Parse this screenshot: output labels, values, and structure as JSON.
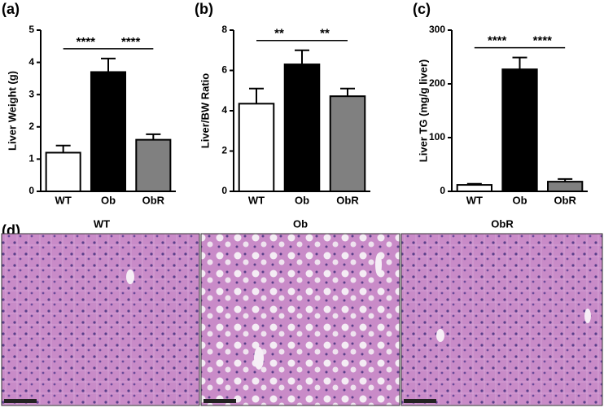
{
  "chart_data": [
    {
      "type": "bar",
      "panel_label": "(a)",
      "y_label": "Liver Weight (g)",
      "categories": [
        "WT",
        "Ob",
        "ObR"
      ],
      "values": [
        1.2,
        3.7,
        1.6
      ],
      "errors": [
        0.22,
        0.42,
        0.17
      ],
      "colors": [
        "#ffffff",
        "#000000",
        "#808080"
      ],
      "ylim": [
        0,
        5
      ],
      "yticks": [
        0,
        1,
        2,
        3,
        4,
        5
      ],
      "annotations": [
        "****",
        "****"
      ]
    },
    {
      "type": "bar",
      "panel_label": "(b)",
      "y_label": "Liver/BW Ratio",
      "categories": [
        "WT",
        "Ob",
        "ObR"
      ],
      "values": [
        4.35,
        6.3,
        4.72
      ],
      "errors": [
        0.75,
        0.7,
        0.38
      ],
      "colors": [
        "#ffffff",
        "#000000",
        "#808080"
      ],
      "ylim": [
        0,
        8
      ],
      "yticks": [
        0,
        2,
        4,
        6,
        8
      ],
      "annotations": [
        "**",
        "**"
      ]
    },
    {
      "type": "bar",
      "panel_label": "(c)",
      "y_label": "Liver TG (mg/g liver)",
      "categories": [
        "WT",
        "Ob",
        "ObR"
      ],
      "values": [
        12,
        227,
        18
      ],
      "errors": [
        2,
        22,
        5
      ],
      "colors": [
        "#ffffff",
        "#000000",
        "#808080"
      ],
      "ylim": [
        0,
        300
      ],
      "yticks": [
        0,
        100,
        200,
        300
      ],
      "annotations": [
        "****",
        "****"
      ]
    }
  ],
  "histology": {
    "panel_label": "(d)",
    "titles": [
      "WT",
      "Ob",
      "ObR"
    ]
  }
}
